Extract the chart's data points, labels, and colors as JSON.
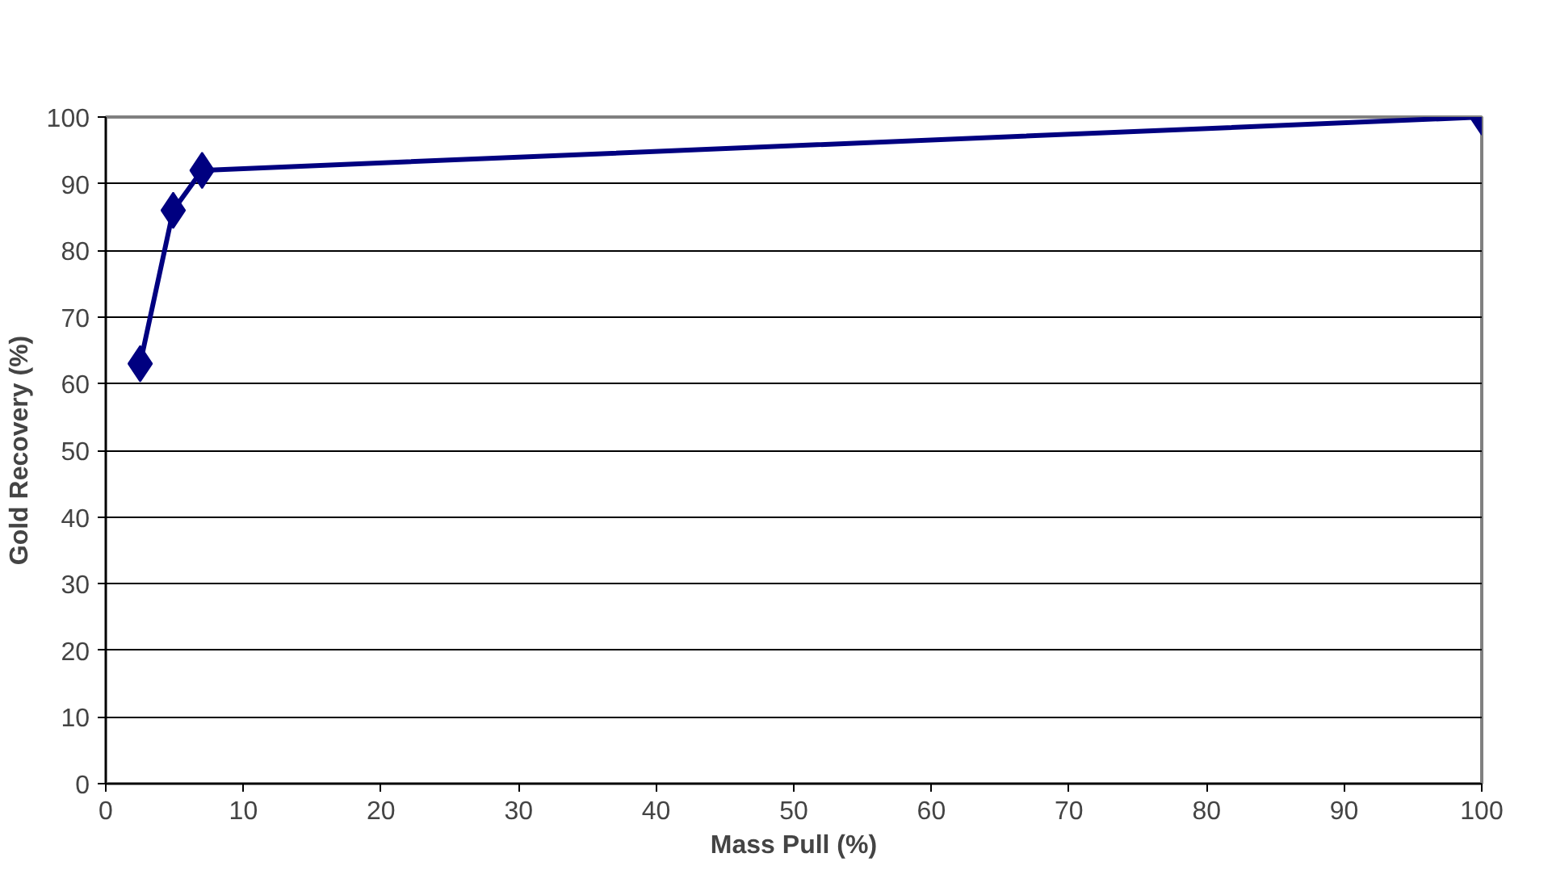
{
  "chart_data": {
    "type": "line",
    "xlabel": "Mass Pull (%)",
    "ylabel": "Gold Recovery (%)",
    "x": [
      2.5,
      4.9,
      7,
      100
    ],
    "series": [
      {
        "color": "#000080",
        "values": [
          63,
          86,
          92,
          100
        ]
      }
    ],
    "xlim": [
      0,
      100
    ],
    "ylim": [
      0,
      100
    ],
    "xticks": [
      0,
      10,
      20,
      30,
      40,
      50,
      60,
      70,
      80,
      90,
      100
    ],
    "yticks": [
      0,
      10,
      20,
      30,
      40,
      50,
      60,
      70,
      80,
      90,
      100
    ],
    "grid": "y",
    "marker": "diamond",
    "line_style": "solid"
  }
}
